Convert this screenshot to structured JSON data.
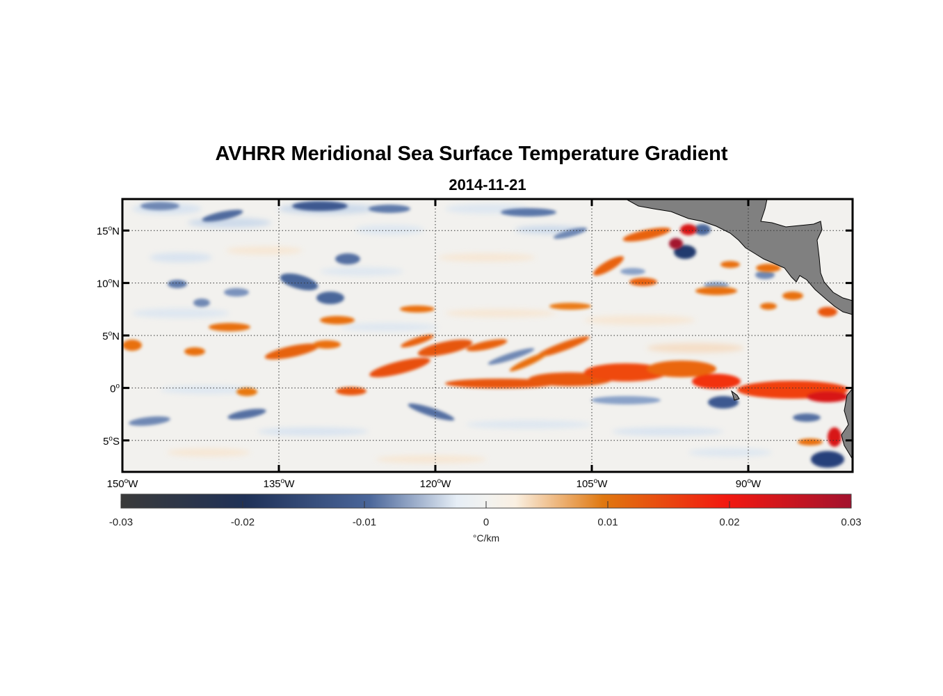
{
  "title": "AVHRR Meridional Sea Surface Temperature Gradient",
  "date": "2014-11-21",
  "map": {
    "lon_range": [
      -150,
      -80
    ],
    "lat_range": [
      -8,
      18
    ],
    "lon_ticks": [
      {
        "lon": -150,
        "label": "150",
        "hemi": "W"
      },
      {
        "lon": -135,
        "label": "135",
        "hemi": "W"
      },
      {
        "lon": -120,
        "label": "120",
        "hemi": "W"
      },
      {
        "lon": -105,
        "label": "105",
        "hemi": "W"
      },
      {
        "lon": -90,
        "label": "90",
        "hemi": "W"
      }
    ],
    "lat_ticks": [
      {
        "lat": 15,
        "label": "15",
        "hemi": "N"
      },
      {
        "lat": 10,
        "label": "10",
        "hemi": "N"
      },
      {
        "lat": 5,
        "label": "5",
        "hemi": "N"
      },
      {
        "lat": 0,
        "label": "0",
        "hemi": ""
      },
      {
        "lat": -5,
        "label": "5",
        "hemi": "S"
      }
    ],
    "gridlines": "dotted",
    "land_color": "#808080"
  },
  "colorbar": {
    "range": [
      -0.03,
      0.03
    ],
    "tick_values": [
      -0.03,
      -0.02,
      -0.01,
      0,
      0.01,
      0.02,
      0.03
    ],
    "tick_labels": [
      "-0.03",
      "-0.02",
      "-0.01",
      "0",
      "0.01",
      "0.02",
      "0.03"
    ],
    "units": "°C/km",
    "colors": [
      "#3a3a3a",
      "#1f3157",
      "#4a669a",
      "#e6eef6",
      "#faf0e2",
      "#e07810",
      "#f21810",
      "#a3122e"
    ]
  },
  "features": [
    {
      "lon": -110.5,
      "lat": 0.3,
      "value": 0.016
    },
    {
      "lon": -101.5,
      "lat": 1.2,
      "value": 0.018
    },
    {
      "lon": -95.5,
      "lat": 0.8,
      "value": 0.02
    },
    {
      "lon": -84.5,
      "lat": -0.5,
      "value": 0.022
    },
    {
      "lon": -117.2,
      "lat": 4.1,
      "value": 0.016
    },
    {
      "lon": -125.8,
      "lat": 2.2,
      "value": 0.016
    },
    {
      "lon": -129.5,
      "lat": -0.4,
      "value": 0.012
    },
    {
      "lon": -136.8,
      "lat": 3.3,
      "value": 0.013
    },
    {
      "lon": -94.3,
      "lat": 14.5,
      "value": 0.02
    },
    {
      "lon": -92.7,
      "lat": 14.2,
      "value": -0.025
    },
    {
      "lon": -91.5,
      "lat": -2.0,
      "value": -0.016
    },
    {
      "lon": -82.6,
      "lat": -6.5,
      "value": -0.022
    },
    {
      "lon": -134.5,
      "lat": 9.4,
      "value": -0.015
    },
    {
      "lon": -127.0,
      "lat": 7.8,
      "value": -0.013
    },
    {
      "lon": -122.0,
      "lat": -2.0,
      "value": -0.012
    }
  ]
}
